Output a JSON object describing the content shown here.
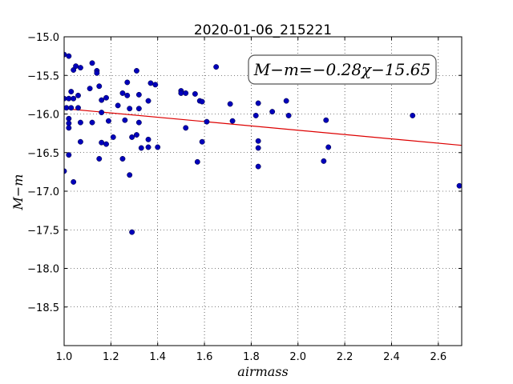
{
  "chart_data": {
    "type": "scatter",
    "title": "2020-01-06_215221",
    "xlabel": "airmass",
    "ylabel": "M−m",
    "xlim": [
      1.0,
      2.7
    ],
    "ylim": [
      -19.0,
      -15.0
    ],
    "y_inverted": true,
    "grid": true,
    "xticks": [
      1.0,
      1.2,
      1.4,
      1.6,
      1.8,
      2.0,
      2.2,
      2.4,
      2.6
    ],
    "xtick_labels": [
      "1.0",
      "1.2",
      "1.4",
      "1.6",
      "1.8",
      "2.0",
      "2.2",
      "2.4",
      "2.6"
    ],
    "yticks": [
      -15.0,
      -15.5,
      -16.0,
      -16.5,
      -17.0,
      -17.5,
      -18.0,
      -18.5
    ],
    "ytick_labels": [
      "−15.0",
      "−15.5",
      "−16.0",
      "−16.5",
      "−17.0",
      "−17.5",
      "−18.0",
      "−18.5"
    ],
    "annotation": "M−m=−0.28χ−15.65",
    "fit": {
      "slope": -0.28,
      "intercept": -15.65,
      "color": "#dd0000"
    },
    "marker_color": "#0000bb",
    "points": [
      [
        1.0,
        -15.23
      ],
      [
        1.02,
        -15.25
      ],
      [
        1.0,
        -15.8
      ],
      [
        1.02,
        -15.8
      ],
      [
        1.04,
        -15.8
      ],
      [
        1.01,
        -15.92
      ],
      [
        1.03,
        -15.92
      ],
      [
        1.03,
        -15.71
      ],
      [
        1.04,
        -15.43
      ],
      [
        1.05,
        -15.38
      ],
      [
        1.07,
        -15.4
      ],
      [
        1.06,
        -15.76
      ],
      [
        1.06,
        -15.92
      ],
      [
        1.02,
        -16.06
      ],
      [
        1.02,
        -16.12
      ],
      [
        1.02,
        -16.18
      ],
      [
        1.07,
        -16.11
      ],
      [
        1.07,
        -16.36
      ],
      [
        1.0,
        -16.74
      ],
      [
        1.02,
        -16.53
      ],
      [
        1.04,
        -16.88
      ],
      [
        1.11,
        -15.67
      ],
      [
        1.12,
        -15.34
      ],
      [
        1.14,
        -15.44
      ],
      [
        1.14,
        -15.47
      ],
      [
        1.15,
        -15.64
      ],
      [
        1.16,
        -15.82
      ],
      [
        1.16,
        -15.98
      ],
      [
        1.12,
        -16.11
      ],
      [
        1.16,
        -16.37
      ],
      [
        1.18,
        -16.39
      ],
      [
        1.15,
        -16.58
      ],
      [
        1.18,
        -15.79
      ],
      [
        1.19,
        -16.09
      ],
      [
        1.21,
        -16.3
      ],
      [
        1.23,
        -15.89
      ],
      [
        1.25,
        -15.73
      ],
      [
        1.27,
        -15.76
      ],
      [
        1.27,
        -15.59
      ],
      [
        1.28,
        -15.93
      ],
      [
        1.26,
        -16.08
      ],
      [
        1.25,
        -16.58
      ],
      [
        1.28,
        -16.79
      ],
      [
        1.29,
        -16.3
      ],
      [
        1.31,
        -16.27
      ],
      [
        1.32,
        -16.11
      ],
      [
        1.32,
        -15.93
      ],
      [
        1.32,
        -15.75
      ],
      [
        1.31,
        -15.44
      ],
      [
        1.33,
        -16.44
      ],
      [
        1.29,
        -17.53
      ],
      [
        1.36,
        -15.83
      ],
      [
        1.37,
        -15.6
      ],
      [
        1.39,
        -15.62
      ],
      [
        1.36,
        -16.33
      ],
      [
        1.36,
        -16.43
      ],
      [
        1.4,
        -16.43
      ],
      [
        1.5,
        -15.7
      ],
      [
        1.5,
        -15.73
      ],
      [
        1.52,
        -15.73
      ],
      [
        1.56,
        -15.74
      ],
      [
        1.58,
        -15.83
      ],
      [
        1.59,
        -15.84
      ],
      [
        1.52,
        -16.18
      ],
      [
        1.59,
        -16.36
      ],
      [
        1.57,
        -16.62
      ],
      [
        1.61,
        -16.1
      ],
      [
        1.65,
        -15.39
      ],
      [
        1.71,
        -15.87
      ],
      [
        1.72,
        -16.09
      ],
      [
        1.82,
        -16.02
      ],
      [
        1.83,
        -15.86
      ],
      [
        1.83,
        -16.35
      ],
      [
        1.83,
        -16.44
      ],
      [
        1.83,
        -16.68
      ],
      [
        1.89,
        -15.97
      ],
      [
        1.95,
        -15.83
      ],
      [
        1.96,
        -16.02
      ],
      [
        2.11,
        -16.61
      ],
      [
        2.12,
        -16.08
      ],
      [
        2.13,
        -16.43
      ],
      [
        2.49,
        -16.02
      ],
      [
        2.69,
        -16.93
      ]
    ]
  }
}
